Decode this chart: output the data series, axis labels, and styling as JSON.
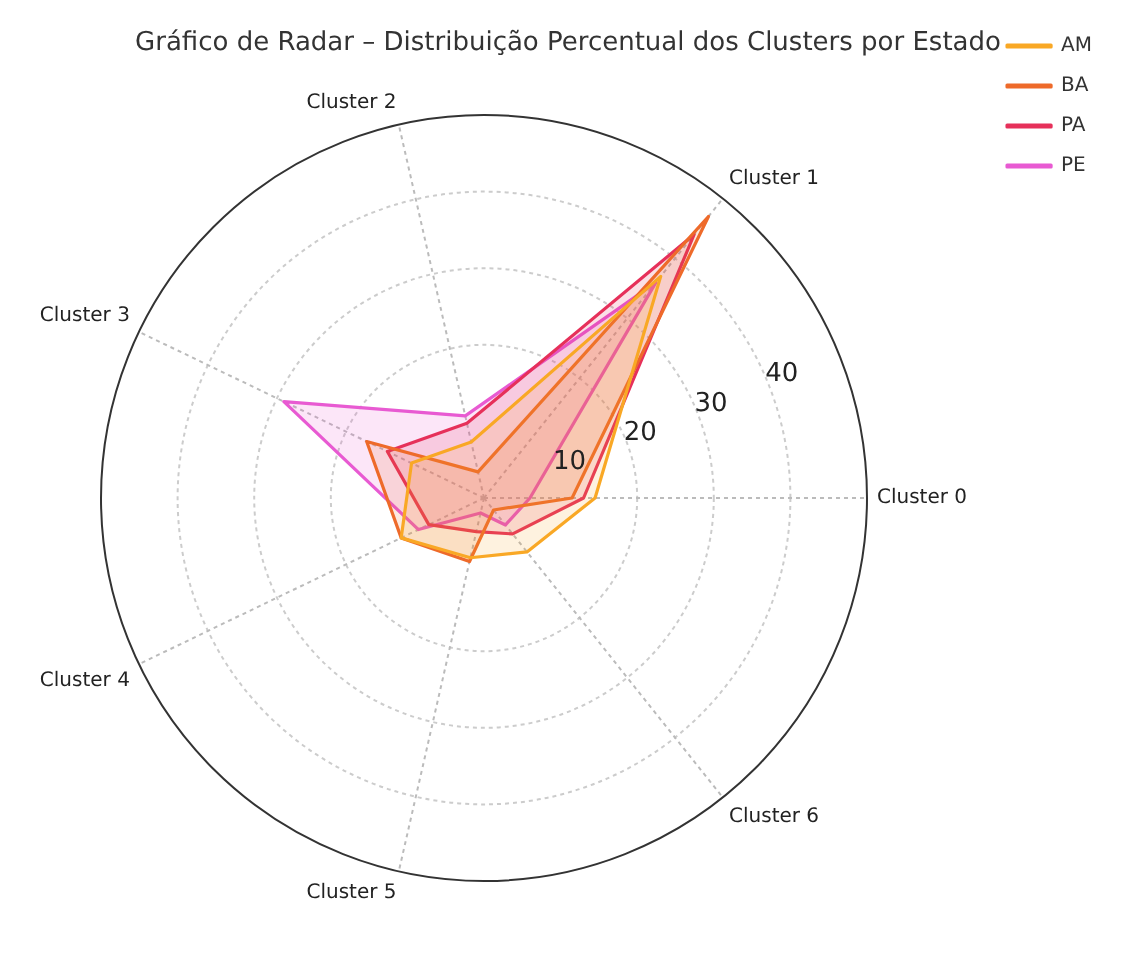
{
  "chart_data": {
    "type": "radar",
    "title": "Gráfico de Radar – Distribuição Percentual dos Clusters por Estado",
    "categories": [
      "Cluster 1",
      "Cluster 0",
      "Cluster 6",
      "Cluster 5",
      "Cluster 4",
      "Cluster 3",
      "Cluster 2"
    ],
    "series": [
      {
        "name": "AM",
        "color": "#f9a825",
        "values": [
          37,
          14.5,
          9,
          8,
          12,
          10.5,
          7.5
        ]
      },
      {
        "name": "BA",
        "color": "#ee6a2a",
        "values": [
          47,
          11.5,
          2,
          8.5,
          12,
          17,
          3.5
        ]
      },
      {
        "name": "PA",
        "color": "#e6305a",
        "values": [
          44,
          13,
          6,
          4.5,
          8,
          14,
          10
        ]
      },
      {
        "name": "PE",
        "color": "#e85ad2",
        "values": [
          36,
          6,
          4.5,
          2,
          9.5,
          29,
          11
        ]
      }
    ],
    "ylim": [
      0,
      50
    ],
    "yticks": [
      10,
      20,
      30,
      40
    ],
    "grid": true,
    "legend": "top right"
  }
}
